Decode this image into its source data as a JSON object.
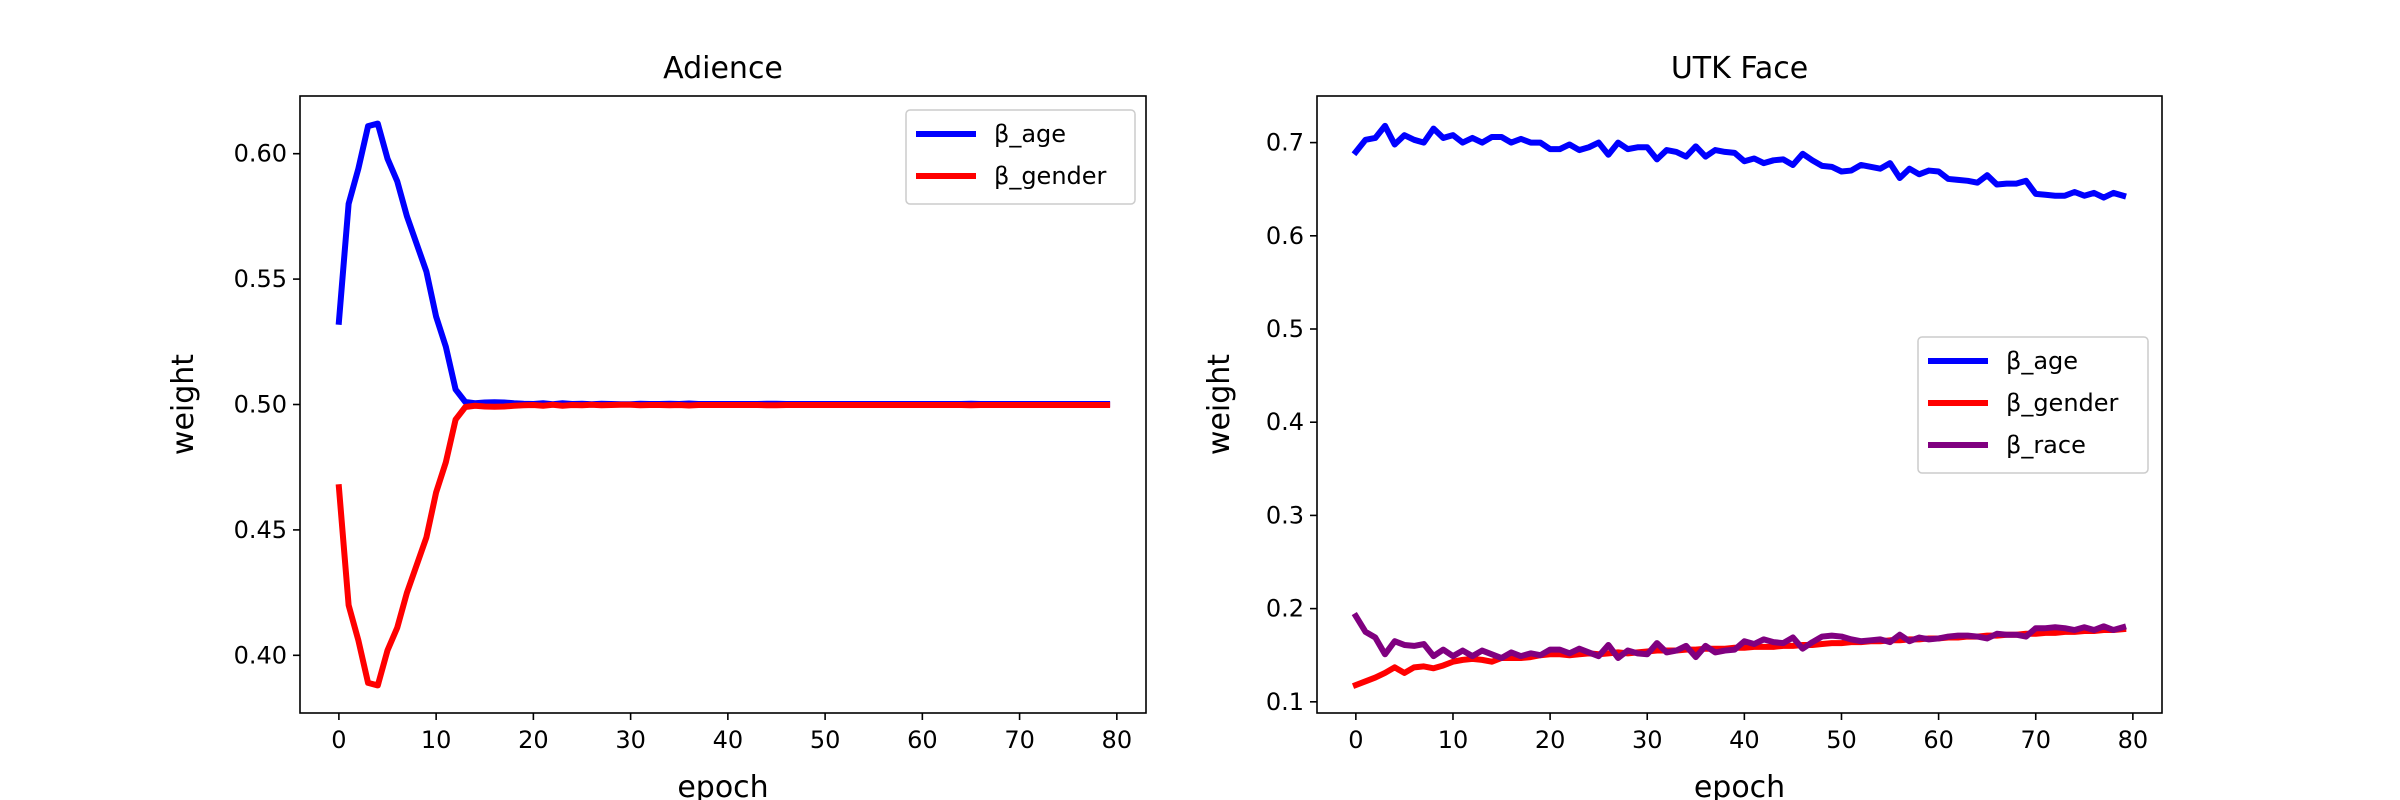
{
  "chart_data": [
    {
      "type": "line",
      "title": "Adience",
      "xlabel": "epoch",
      "ylabel": "weight",
      "xlim": [
        -4,
        83
      ],
      "ylim": [
        0.377,
        0.623
      ],
      "xticks": [
        0,
        10,
        20,
        30,
        40,
        50,
        60,
        70,
        80
      ],
      "yticks": [
        0.4,
        0.45,
        0.5,
        0.55,
        0.6
      ],
      "ytick_labels": [
        "0.40",
        "0.45",
        "0.50",
        "0.55",
        "0.60"
      ],
      "grid": false,
      "legend_position": "upper right",
      "x": [
        0,
        1,
        2,
        3,
        4,
        5,
        6,
        7,
        8,
        9,
        10,
        11,
        12,
        13,
        14,
        15,
        16,
        17,
        18,
        19,
        20,
        21,
        22,
        23,
        24,
        25,
        26,
        27,
        28,
        29,
        30,
        31,
        32,
        33,
        34,
        35,
        36,
        37,
        38,
        39,
        40,
        41,
        42,
        43,
        44,
        45,
        46,
        47,
        48,
        49,
        50,
        51,
        52,
        53,
        54,
        55,
        56,
        57,
        58,
        59,
        60,
        61,
        62,
        63,
        64,
        65,
        66,
        67,
        68,
        69,
        70,
        71,
        72,
        73,
        74,
        75,
        76,
        77,
        78,
        79
      ],
      "series": [
        {
          "name": "β_age",
          "color": "#0000ff",
          "values": [
            0.533,
            0.58,
            0.594,
            0.611,
            0.612,
            0.598,
            0.589,
            0.575,
            0.564,
            0.553,
            0.535,
            0.523,
            0.506,
            0.501,
            0.5005,
            0.5008,
            0.5009,
            0.5008,
            0.5005,
            0.5003,
            0.5002,
            0.5005,
            0.5001,
            0.5005,
            0.5002,
            0.5003,
            0.5001,
            0.5003,
            0.5002,
            0.5001,
            0.5001,
            0.5003,
            0.5002,
            0.5002,
            0.5003,
            0.5002,
            0.5004,
            0.5002,
            0.5002,
            0.5002,
            0.5002,
            0.5002,
            0.5002,
            0.5002,
            0.5003,
            0.5003,
            0.5002,
            0.5002,
            0.5002,
            0.5002,
            0.5002,
            0.5002,
            0.5002,
            0.5002,
            0.5002,
            0.5002,
            0.5002,
            0.5002,
            0.5002,
            0.5002,
            0.5002,
            0.5002,
            0.5002,
            0.5002,
            0.5002,
            0.5003,
            0.5002,
            0.5002,
            0.5002,
            0.5002,
            0.5002,
            0.5002,
            0.5002,
            0.5002,
            0.5002,
            0.5002,
            0.5002,
            0.5002,
            0.5002,
            0.5002
          ]
        },
        {
          "name": "β_gender",
          "color": "#ff0000",
          "values": [
            0.467,
            0.42,
            0.406,
            0.389,
            0.388,
            0.402,
            0.411,
            0.425,
            0.436,
            0.447,
            0.465,
            0.477,
            0.494,
            0.499,
            0.4995,
            0.4992,
            0.4991,
            0.4992,
            0.4995,
            0.4997,
            0.4998,
            0.4995,
            0.4999,
            0.4995,
            0.4998,
            0.4997,
            0.4999,
            0.4997,
            0.4998,
            0.4999,
            0.4999,
            0.4997,
            0.4998,
            0.4998,
            0.4997,
            0.4998,
            0.4996,
            0.4998,
            0.4998,
            0.4998,
            0.4998,
            0.4998,
            0.4998,
            0.4998,
            0.4997,
            0.4997,
            0.4998,
            0.4998,
            0.4998,
            0.4998,
            0.4998,
            0.4998,
            0.4998,
            0.4998,
            0.4998,
            0.4998,
            0.4998,
            0.4998,
            0.4998,
            0.4998,
            0.4998,
            0.4998,
            0.4998,
            0.4998,
            0.4998,
            0.4997,
            0.4998,
            0.4998,
            0.4998,
            0.4998,
            0.4998,
            0.4998,
            0.4998,
            0.4998,
            0.4998,
            0.4998,
            0.4998,
            0.4998,
            0.4998,
            0.4998
          ]
        }
      ]
    },
    {
      "type": "line",
      "title": "UTK Face",
      "xlabel": "epoch",
      "ylabel": "weight",
      "xlim": [
        -4,
        83
      ],
      "ylim": [
        0.088,
        0.75
      ],
      "xticks": [
        0,
        10,
        20,
        30,
        40,
        50,
        60,
        70,
        80
      ],
      "yticks": [
        0.1,
        0.2,
        0.3,
        0.4,
        0.5,
        0.6,
        0.7
      ],
      "ytick_labels": [
        "0.1",
        "0.2",
        "0.3",
        "0.4",
        "0.5",
        "0.6",
        "0.7"
      ],
      "grid": false,
      "legend_position": "center right",
      "x": [
        0,
        1,
        2,
        3,
        4,
        5,
        6,
        7,
        8,
        9,
        10,
        11,
        12,
        13,
        14,
        15,
        16,
        17,
        18,
        19,
        20,
        21,
        22,
        23,
        24,
        25,
        26,
        27,
        28,
        29,
        30,
        31,
        32,
        33,
        34,
        35,
        36,
        37,
        38,
        39,
        40,
        41,
        42,
        43,
        44,
        45,
        46,
        47,
        48,
        49,
        50,
        51,
        52,
        53,
        54,
        55,
        56,
        57,
        58,
        59,
        60,
        61,
        62,
        63,
        64,
        65,
        66,
        67,
        68,
        69,
        70,
        71,
        72,
        73,
        74,
        75,
        76,
        77,
        78,
        79
      ],
      "series": [
        {
          "name": "β_age",
          "color": "#0000ff",
          "values": [
            0.69,
            0.703,
            0.705,
            0.718,
            0.698,
            0.708,
            0.703,
            0.7,
            0.715,
            0.705,
            0.708,
            0.7,
            0.705,
            0.7,
            0.706,
            0.706,
            0.7,
            0.704,
            0.7,
            0.7,
            0.693,
            0.693,
            0.698,
            0.692,
            0.695,
            0.7,
            0.687,
            0.7,
            0.693,
            0.695,
            0.695,
            0.682,
            0.692,
            0.69,
            0.685,
            0.696,
            0.685,
            0.692,
            0.69,
            0.689,
            0.68,
            0.683,
            0.678,
            0.681,
            0.682,
            0.676,
            0.688,
            0.681,
            0.675,
            0.674,
            0.669,
            0.67,
            0.676,
            0.674,
            0.672,
            0.678,
            0.662,
            0.672,
            0.666,
            0.67,
            0.669,
            0.661,
            0.66,
            0.659,
            0.657,
            0.665,
            0.655,
            0.656,
            0.656,
            0.659,
            0.645,
            0.644,
            0.643,
            0.643,
            0.647,
            0.643,
            0.646,
            0.641,
            0.646,
            0.643
          ]
        },
        {
          "name": "β_gender",
          "color": "#ff0000",
          "values": [
            0.118,
            0.122,
            0.126,
            0.131,
            0.137,
            0.131,
            0.137,
            0.138,
            0.136,
            0.139,
            0.143,
            0.145,
            0.146,
            0.145,
            0.143,
            0.147,
            0.147,
            0.147,
            0.148,
            0.15,
            0.151,
            0.151,
            0.15,
            0.151,
            0.152,
            0.151,
            0.152,
            0.153,
            0.152,
            0.153,
            0.154,
            0.155,
            0.155,
            0.155,
            0.156,
            0.156,
            0.157,
            0.157,
            0.157,
            0.158,
            0.158,
            0.159,
            0.159,
            0.159,
            0.16,
            0.16,
            0.161,
            0.161,
            0.162,
            0.163,
            0.163,
            0.164,
            0.164,
            0.165,
            0.165,
            0.166,
            0.166,
            0.167,
            0.167,
            0.168,
            0.168,
            0.169,
            0.169,
            0.17,
            0.17,
            0.171,
            0.171,
            0.172,
            0.172,
            0.173,
            0.173,
            0.174,
            0.174,
            0.175,
            0.175,
            0.176,
            0.176,
            0.177,
            0.177,
            0.178
          ]
        },
        {
          "name": "β_race",
          "color": "#800080",
          "values": [
            0.192,
            0.175,
            0.169,
            0.151,
            0.165,
            0.161,
            0.16,
            0.162,
            0.149,
            0.156,
            0.149,
            0.155,
            0.149,
            0.155,
            0.151,
            0.147,
            0.153,
            0.149,
            0.152,
            0.15,
            0.156,
            0.156,
            0.152,
            0.157,
            0.153,
            0.149,
            0.161,
            0.147,
            0.155,
            0.152,
            0.151,
            0.163,
            0.153,
            0.155,
            0.16,
            0.148,
            0.16,
            0.153,
            0.155,
            0.156,
            0.165,
            0.162,
            0.167,
            0.164,
            0.163,
            0.169,
            0.157,
            0.164,
            0.17,
            0.171,
            0.17,
            0.167,
            0.165,
            0.166,
            0.167,
            0.164,
            0.172,
            0.165,
            0.169,
            0.167,
            0.168,
            0.17,
            0.171,
            0.171,
            0.17,
            0.168,
            0.173,
            0.172,
            0.172,
            0.17,
            0.179,
            0.179,
            0.18,
            0.179,
            0.177,
            0.18,
            0.177,
            0.181,
            0.177,
            0.18
          ]
        }
      ]
    }
  ]
}
